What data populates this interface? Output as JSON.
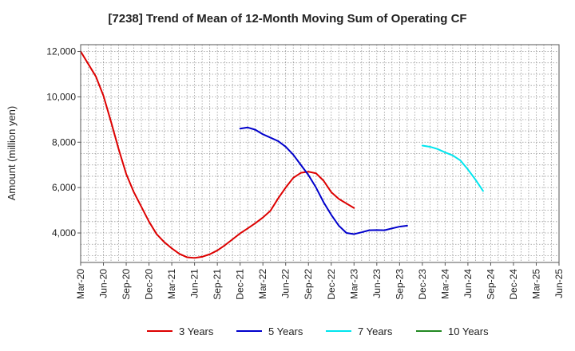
{
  "chart_data": {
    "type": "line",
    "title": "[7238]  Trend of Mean of 12-Month Moving Sum of Operating CF",
    "xlabel": "",
    "ylabel": "Amount (million yen)",
    "ylim": [
      2700,
      12300
    ],
    "yticks": [
      4000,
      6000,
      8000,
      10000,
      12000
    ],
    "ytick_labels": [
      "4,000",
      "6,000",
      "8,000",
      "10,000",
      "12,000"
    ],
    "x_tick_labels": [
      "Mar-20",
      "Jun-20",
      "Sep-20",
      "Dec-20",
      "Mar-21",
      "Jun-21",
      "Sep-21",
      "Dec-21",
      "Mar-22",
      "Jun-22",
      "Sep-22",
      "Dec-22",
      "Mar-23",
      "Jun-23",
      "Sep-23",
      "Dec-23",
      "Mar-24",
      "Jun-24",
      "Sep-24",
      "Dec-24",
      "Mar-25",
      "Jun-25"
    ],
    "grid": true,
    "legend_position": "bottom",
    "series": [
      {
        "name": "3 Years",
        "color": "#dd0000",
        "start_index": 0,
        "values": [
          12000,
          11450,
          10900,
          10050,
          8900,
          7700,
          6600,
          5800,
          5150,
          4500,
          3950,
          3600,
          3320,
          3080,
          2930,
          2900,
          2950,
          3060,
          3230,
          3460,
          3720,
          3980,
          4200,
          4430,
          4680,
          4980,
          5520,
          6000,
          6430,
          6650,
          6700,
          6630,
          6300,
          5800,
          5500,
          5300,
          5100
        ]
      },
      {
        "name": "5 Years",
        "color": "#0000cc",
        "start_index": 21,
        "values": [
          8600,
          8650,
          8550,
          8350,
          8200,
          8050,
          7800,
          7450,
          7000,
          6550,
          6000,
          5350,
          4800,
          4320,
          4000,
          3950,
          4030,
          4120,
          4130,
          4120,
          4200,
          4280,
          4320
        ]
      },
      {
        "name": "7 Years",
        "color": "#00e5ee",
        "start_index": 45,
        "values": [
          7850,
          7800,
          7700,
          7550,
          7420,
          7200,
          6800,
          6350,
          5850
        ]
      },
      {
        "name": "10 Years",
        "color": "#228822",
        "start_index": 0,
        "values": []
      }
    ]
  }
}
